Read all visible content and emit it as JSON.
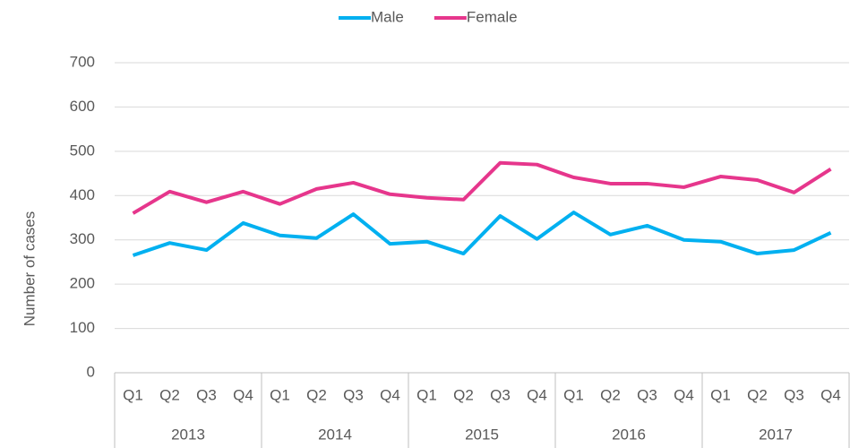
{
  "chart_data": {
    "type": "line",
    "categories": [
      "Q1",
      "Q2",
      "Q3",
      "Q4",
      "Q1",
      "Q2",
      "Q3",
      "Q4",
      "Q1",
      "Q2",
      "Q3",
      "Q4",
      "Q1",
      "Q2",
      "Q3",
      "Q4",
      "Q1",
      "Q2",
      "Q3",
      "Q4"
    ],
    "category_groups": [
      "2013",
      "2014",
      "2015",
      "2016",
      "2017"
    ],
    "y_label": "Number of cases",
    "ylim": [
      0,
      700
    ],
    "yticks": [
      0,
      100,
      200,
      300,
      400,
      500,
      600,
      700
    ],
    "grid": true,
    "legend": "top",
    "series": [
      {
        "name": "Male",
        "color": "#00b0f0",
        "values": [
          265,
          293,
          277,
          338,
          310,
          304,
          358,
          291,
          296,
          269,
          354,
          302,
          362,
          312,
          332,
          300,
          296,
          269,
          277,
          316
        ]
      },
      {
        "name": "Female",
        "color": "#e6368c",
        "values": [
          360,
          409,
          385,
          409,
          381,
          415,
          429,
          403,
          395,
          391,
          474,
          470,
          441,
          427,
          427,
          419,
          443,
          435,
          407,
          460
        ]
      }
    ]
  }
}
